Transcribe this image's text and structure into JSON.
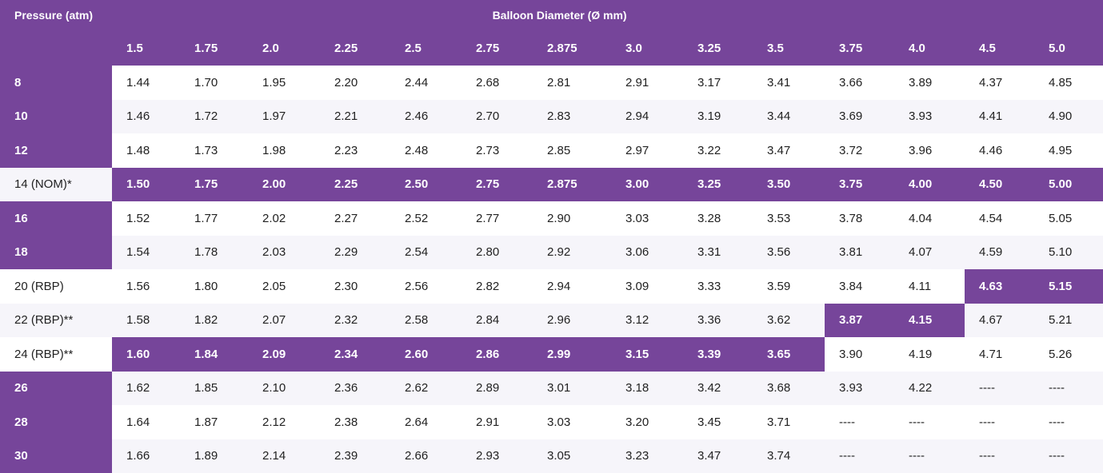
{
  "header": {
    "pressure_label": "Pressure (atm)",
    "diameter_label": "Balloon Diameter (Ø  mm)",
    "diameters": [
      "1.5",
      "1.75",
      "2.0",
      "2.25",
      "2.5",
      "2.75",
      "2.875",
      "3.0",
      "3.25",
      "3.5",
      "3.75",
      "4.0",
      "4.5",
      "5.0"
    ]
  },
  "colors": {
    "accent": "#76459a",
    "alt_row": "#f6f5fa"
  },
  "rows": [
    {
      "pressure": "8",
      "pressure_highlight": true,
      "values": [
        "1.44",
        "1.70",
        "1.95",
        "2.20",
        "2.44",
        "2.68",
        "2.81",
        "2.91",
        "3.17",
        "3.41",
        "3.66",
        "3.89",
        "4.37",
        "4.85"
      ],
      "highlight": []
    },
    {
      "pressure": "10",
      "pressure_highlight": true,
      "values": [
        "1.46",
        "1.72",
        "1.97",
        "2.21",
        "2.46",
        "2.70",
        "2.83",
        "2.94",
        "3.19",
        "3.44",
        "3.69",
        "3.93",
        "4.41",
        "4.90"
      ],
      "highlight": []
    },
    {
      "pressure": "12",
      "pressure_highlight": true,
      "values": [
        "1.48",
        "1.73",
        "1.98",
        "2.23",
        "2.48",
        "2.73",
        "2.85",
        "2.97",
        "3.22",
        "3.47",
        "3.72",
        "3.96",
        "4.46",
        "4.95"
      ],
      "highlight": []
    },
    {
      "pressure": "14 (NOM)*",
      "pressure_highlight": false,
      "values": [
        "1.50",
        "1.75",
        "2.00",
        "2.25",
        "2.50",
        "2.75",
        "2.875",
        "3.00",
        "3.25",
        "3.50",
        "3.75",
        "4.00",
        "4.50",
        "5.00"
      ],
      "highlight": [
        0,
        1,
        2,
        3,
        4,
        5,
        6,
        7,
        8,
        9,
        10,
        11,
        12,
        13
      ]
    },
    {
      "pressure": "16",
      "pressure_highlight": true,
      "values": [
        "1.52",
        "1.77",
        "2.02",
        "2.27",
        "2.52",
        "2.77",
        "2.90",
        "3.03",
        "3.28",
        "3.53",
        "3.78",
        "4.04",
        "4.54",
        "5.05"
      ],
      "highlight": []
    },
    {
      "pressure": "18",
      "pressure_highlight": true,
      "values": [
        "1.54",
        "1.78",
        "2.03",
        "2.29",
        "2.54",
        "2.80",
        "2.92",
        "3.06",
        "3.31",
        "3.56",
        "3.81",
        "4.07",
        "4.59",
        "5.10"
      ],
      "highlight": []
    },
    {
      "pressure": "20 (RBP)",
      "pressure_highlight": false,
      "values": [
        "1.56",
        "1.80",
        "2.05",
        "2.30",
        "2.56",
        "2.82",
        "2.94",
        "3.09",
        "3.33",
        "3.59",
        "3.84",
        "4.11",
        "4.63",
        "5.15"
      ],
      "highlight": [
        12,
        13
      ]
    },
    {
      "pressure": "22 (RBP)**",
      "pressure_highlight": false,
      "values": [
        "1.58",
        "1.82",
        "2.07",
        "2.32",
        "2.58",
        "2.84",
        "2.96",
        "3.12",
        "3.36",
        "3.62",
        "3.87",
        "4.15",
        "4.67",
        "5.21"
      ],
      "highlight": [
        10,
        11
      ]
    },
    {
      "pressure": "24 (RBP)**",
      "pressure_highlight": false,
      "values": [
        "1.60",
        "1.84",
        "2.09",
        "2.34",
        "2.60",
        "2.86",
        "2.99",
        "3.15",
        "3.39",
        "3.65",
        "3.90",
        "4.19",
        "4.71",
        "5.26"
      ],
      "highlight": [
        0,
        1,
        2,
        3,
        4,
        5,
        6,
        7,
        8,
        9
      ]
    },
    {
      "pressure": "26",
      "pressure_highlight": true,
      "values": [
        "1.62",
        "1.85",
        "2.10",
        "2.36",
        "2.62",
        "2.89",
        "3.01",
        "3.18",
        "3.42",
        "3.68",
        "3.93",
        "4.22",
        "----",
        "----"
      ],
      "highlight": []
    },
    {
      "pressure": "28",
      "pressure_highlight": true,
      "values": [
        "1.64",
        "1.87",
        "2.12",
        "2.38",
        "2.64",
        "2.91",
        "3.03",
        "3.20",
        "3.45",
        "3.71",
        "----",
        "----",
        "----",
        "----"
      ],
      "highlight": []
    },
    {
      "pressure": "30",
      "pressure_highlight": true,
      "values": [
        "1.66",
        "1.89",
        "2.14",
        "2.39",
        "2.66",
        "2.93",
        "3.05",
        "3.23",
        "3.47",
        "3.74",
        "----",
        "----",
        "----",
        "----"
      ],
      "highlight": []
    }
  ]
}
